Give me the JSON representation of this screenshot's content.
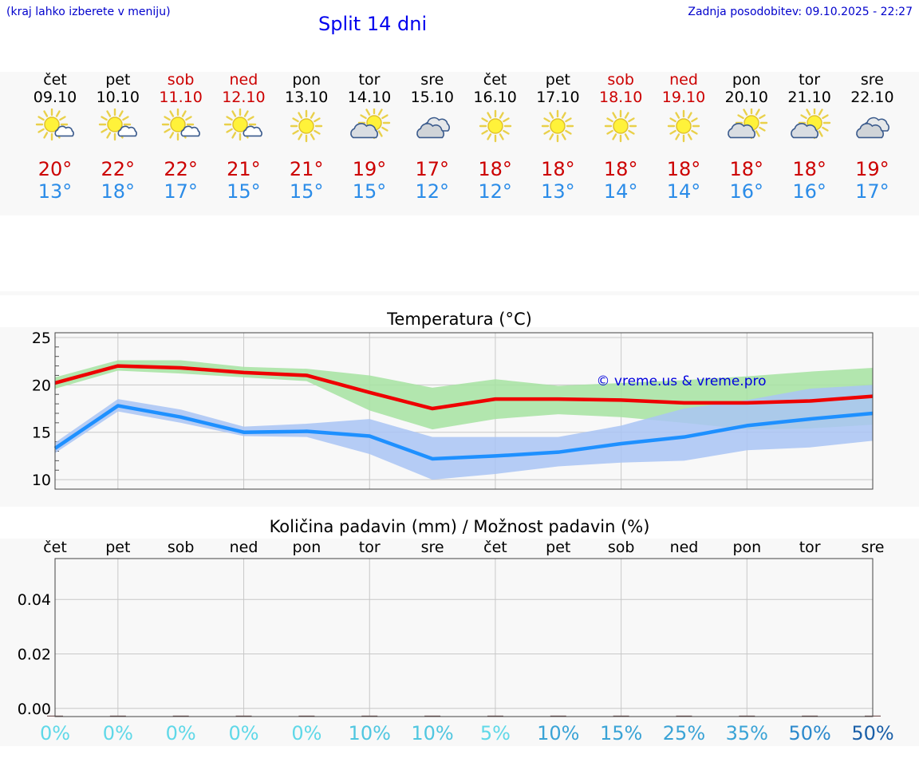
{
  "header": {
    "menu_hint": "(kraj lahko izberete v meniju)",
    "title": "Split 14 dni",
    "last_update": "Zadnja posodobitev: 09.10.2025 - 22:27"
  },
  "days": [
    {
      "name": "čet",
      "date": "09.10",
      "weekend": false,
      "icon": "sun-small-cloud-icon",
      "tmax": "20°",
      "tmin": "13°"
    },
    {
      "name": "pet",
      "date": "10.10",
      "weekend": false,
      "icon": "sun-small-cloud-icon",
      "tmax": "22°",
      "tmin": "18°"
    },
    {
      "name": "sob",
      "date": "11.10",
      "weekend": true,
      "icon": "sun-small-cloud-icon",
      "tmax": "22°",
      "tmin": "17°"
    },
    {
      "name": "ned",
      "date": "12.10",
      "weekend": true,
      "icon": "sun-small-cloud-icon",
      "tmax": "21°",
      "tmin": "15°"
    },
    {
      "name": "pon",
      "date": "13.10",
      "weekend": false,
      "icon": "sun-icon",
      "tmax": "21°",
      "tmin": "15°"
    },
    {
      "name": "tor",
      "date": "14.10",
      "weekend": false,
      "icon": "partly-cloudy-icon",
      "tmax": "19°",
      "tmin": "15°"
    },
    {
      "name": "sre",
      "date": "15.10",
      "weekend": false,
      "icon": "cloudy-icon",
      "tmax": "17°",
      "tmin": "12°"
    },
    {
      "name": "čet",
      "date": "16.10",
      "weekend": false,
      "icon": "sun-icon",
      "tmax": "18°",
      "tmin": "12°"
    },
    {
      "name": "pet",
      "date": "17.10",
      "weekend": false,
      "icon": "sun-icon",
      "tmax": "18°",
      "tmin": "13°"
    },
    {
      "name": "sob",
      "date": "18.10",
      "weekend": true,
      "icon": "sun-icon",
      "tmax": "18°",
      "tmin": "14°"
    },
    {
      "name": "ned",
      "date": "19.10",
      "weekend": true,
      "icon": "sun-icon",
      "tmax": "18°",
      "tmin": "14°"
    },
    {
      "name": "pon",
      "date": "20.10",
      "weekend": false,
      "icon": "partly-cloudy-icon",
      "tmax": "18°",
      "tmin": "16°"
    },
    {
      "name": "tor",
      "date": "21.10",
      "weekend": false,
      "icon": "partly-cloudy-icon",
      "tmax": "18°",
      "tmin": "16°"
    },
    {
      "name": "sre",
      "date": "22.10",
      "weekend": false,
      "icon": "cloudy-icon",
      "tmax": "19°",
      "tmin": "17°"
    }
  ],
  "colors": {
    "weekday_text": "#000000",
    "weekend_text": "#cc0000",
    "max_line": "#ee0000",
    "min_line": "#1e90ff",
    "max_band": "#a6e3a1",
    "min_band": "#a9c4f5"
  },
  "chart_data": [
    {
      "type": "line",
      "title": "Temperatura (°C)",
      "watermark": "© vreme.us & vreme.pro",
      "ylim": [
        9,
        25.5
      ],
      "yticks": [
        10,
        15,
        20,
        25
      ],
      "grid": true,
      "x": [
        0,
        1,
        2,
        3,
        4,
        5,
        6,
        7,
        8,
        9,
        10,
        11,
        12,
        13
      ],
      "series": [
        {
          "role": "max",
          "values": [
            20.2,
            22.0,
            21.8,
            21.3,
            21.0,
            19.2,
            17.5,
            18.5,
            18.5,
            18.4,
            18.1,
            18.1,
            18.3,
            18.8
          ],
          "band_low": [
            19.6,
            21.5,
            21.2,
            20.8,
            20.4,
            17.3,
            15.3,
            16.4,
            16.9,
            16.6,
            16.0,
            15.3,
            15.4,
            15.8
          ],
          "band_high": [
            20.8,
            22.6,
            22.6,
            21.9,
            21.7,
            21.0,
            19.7,
            20.6,
            19.9,
            20.2,
            20.5,
            20.9,
            21.4,
            21.8
          ]
        },
        {
          "role": "min",
          "values": [
            13.3,
            17.8,
            16.6,
            15.0,
            15.1,
            14.6,
            12.2,
            12.5,
            12.9,
            13.8,
            14.5,
            15.7,
            16.4,
            17.0
          ],
          "band_low": [
            12.8,
            17.2,
            16.0,
            14.6,
            14.5,
            12.7,
            10.0,
            10.6,
            11.4,
            11.8,
            12.0,
            13.1,
            13.4,
            14.1
          ],
          "band_high": [
            13.9,
            18.5,
            17.4,
            15.6,
            15.9,
            16.4,
            14.5,
            14.5,
            14.5,
            15.7,
            17.5,
            18.4,
            19.6,
            20.0
          ]
        }
      ]
    },
    {
      "type": "bar",
      "title": "Količina padavin (mm) / Možnost padavin (%)",
      "categories": [
        "čet",
        "pet",
        "sob",
        "ned",
        "pon",
        "tor",
        "sre",
        "čet",
        "pet",
        "sob",
        "ned",
        "pon",
        "tor",
        "sre"
      ],
      "values": [
        0,
        0,
        0,
        0,
        0,
        0,
        0,
        0,
        0,
        0,
        0,
        0,
        0,
        0
      ],
      "ylim": [
        -0.003,
        0.055
      ],
      "yticks": [
        0.0,
        0.02,
        0.04
      ],
      "ytick_labels": [
        "0.00",
        "0.02",
        "0.04"
      ],
      "grid": true,
      "probability": [
        "0%",
        "0%",
        "0%",
        "0%",
        "0%",
        "10%",
        "10%",
        "5%",
        "10%",
        "15%",
        "25%",
        "35%",
        "50%",
        "50%"
      ],
      "probability_colors": [
        "#5fd8e8",
        "#5fd8e8",
        "#5fd8e8",
        "#5fd8e8",
        "#5fd8e8",
        "#4fc6e0",
        "#4fc6e0",
        "#5fd8e8",
        "#3aa3d6",
        "#3aa3d6",
        "#3aa3d6",
        "#3aa3d6",
        "#2b89cc",
        "#1a5fa8"
      ]
    }
  ]
}
